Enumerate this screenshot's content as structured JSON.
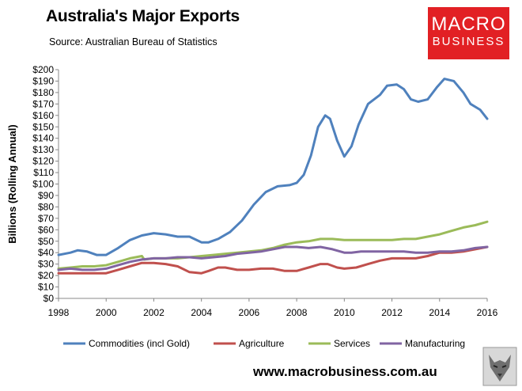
{
  "header": {
    "title": "Australia's Major Exports",
    "source": "Source:  Australian Bureau of Statistics"
  },
  "logo": {
    "line1": "MACRO",
    "line2": "BUSINESS"
  },
  "footer": {
    "url": "www.macrobusiness.com.au"
  },
  "chart_data": {
    "type": "line",
    "title": "Australia's Major Exports",
    "xlabel": "",
    "ylabel": "Billions (Rolling Annual)",
    "xlim": [
      1998,
      2016
    ],
    "ylim": [
      0,
      200
    ],
    "x_ticks": [
      1998,
      2000,
      2002,
      2004,
      2006,
      2008,
      2010,
      2012,
      2014,
      2016
    ],
    "y_ticks": [
      0,
      10,
      20,
      30,
      40,
      50,
      60,
      70,
      80,
      90,
      100,
      110,
      120,
      130,
      140,
      150,
      160,
      170,
      180,
      190,
      200
    ],
    "y_tick_labels": [
      "$0",
      "$10",
      "$20",
      "$30",
      "$40",
      "$50",
      "$60",
      "$70",
      "$80",
      "$90",
      "$100",
      "$110",
      "$120",
      "$130",
      "$140",
      "$150",
      "$160",
      "$170",
      "$180",
      "$190",
      "$200"
    ],
    "grid": false,
    "legend_position": "bottom",
    "series": [
      {
        "name": "Commodities (incl Gold)",
        "color": "#4f81bd",
        "points": [
          [
            1998,
            38
          ],
          [
            1998.5,
            40
          ],
          [
            1998.8,
            42
          ],
          [
            1999.2,
            41
          ],
          [
            1999.6,
            38
          ],
          [
            2000,
            38
          ],
          [
            2000.5,
            44
          ],
          [
            2001,
            51
          ],
          [
            2001.5,
            55
          ],
          [
            2002,
            57
          ],
          [
            2002.5,
            56
          ],
          [
            2003,
            54
          ],
          [
            2003.5,
            54
          ],
          [
            2004,
            49
          ],
          [
            2004.3,
            49
          ],
          [
            2004.7,
            52
          ],
          [
            2005.2,
            58
          ],
          [
            2005.7,
            68
          ],
          [
            2006.2,
            82
          ],
          [
            2006.7,
            93
          ],
          [
            2007.2,
            98
          ],
          [
            2007.7,
            99
          ],
          [
            2008,
            101
          ],
          [
            2008.3,
            108
          ],
          [
            2008.6,
            125
          ],
          [
            2008.9,
            150
          ],
          [
            2009.2,
            160
          ],
          [
            2009.4,
            157
          ],
          [
            2009.7,
            138
          ],
          [
            2010,
            124
          ],
          [
            2010.3,
            133
          ],
          [
            2010.6,
            152
          ],
          [
            2011,
            170
          ],
          [
            2011.5,
            178
          ],
          [
            2011.8,
            186
          ],
          [
            2012.2,
            187
          ],
          [
            2012.5,
            183
          ],
          [
            2012.8,
            174
          ],
          [
            2013.1,
            172
          ],
          [
            2013.5,
            174
          ],
          [
            2013.9,
            185
          ],
          [
            2014.2,
            192
          ],
          [
            2014.6,
            190
          ],
          [
            2015,
            180
          ],
          [
            2015.3,
            170
          ],
          [
            2015.7,
            165
          ],
          [
            2016,
            157
          ]
        ]
      },
      {
        "name": "Agriculture",
        "color": "#c0504d",
        "points": [
          [
            1998,
            22
          ],
          [
            1999,
            22
          ],
          [
            2000,
            22
          ],
          [
            2000.5,
            25
          ],
          [
            2001,
            28
          ],
          [
            2001.5,
            31
          ],
          [
            2002,
            31
          ],
          [
            2002.5,
            30
          ],
          [
            2003,
            28
          ],
          [
            2003.5,
            23
          ],
          [
            2004,
            22
          ],
          [
            2004.3,
            24
          ],
          [
            2004.7,
            27
          ],
          [
            2005,
            27
          ],
          [
            2005.5,
            25
          ],
          [
            2006,
            25
          ],
          [
            2006.5,
            26
          ],
          [
            2007,
            26
          ],
          [
            2007.5,
            24
          ],
          [
            2008,
            24
          ],
          [
            2008.5,
            27
          ],
          [
            2009,
            30
          ],
          [
            2009.3,
            30
          ],
          [
            2009.7,
            27
          ],
          [
            2010,
            26
          ],
          [
            2010.5,
            27
          ],
          [
            2011,
            30
          ],
          [
            2011.5,
            33
          ],
          [
            2012,
            35
          ],
          [
            2012.5,
            35
          ],
          [
            2013,
            35
          ],
          [
            2013.5,
            37
          ],
          [
            2014,
            40
          ],
          [
            2014.5,
            40
          ],
          [
            2015,
            41
          ],
          [
            2015.5,
            43
          ],
          [
            2016,
            45
          ]
        ]
      },
      {
        "name": "Services",
        "color": "#9bbb59",
        "points": [
          [
            1998,
            26
          ],
          [
            1998.5,
            27
          ],
          [
            1999,
            28
          ],
          [
            1999.5,
            28
          ],
          [
            2000,
            29
          ],
          [
            2000.5,
            32
          ],
          [
            2001,
            35
          ],
          [
            2001.5,
            37
          ],
          [
            2001.6,
            34
          ],
          [
            2002,
            35
          ],
          [
            2002.5,
            35
          ],
          [
            2003,
            35
          ],
          [
            2003.5,
            36
          ],
          [
            2004,
            37
          ],
          [
            2004.5,
            38
          ],
          [
            2005,
            39
          ],
          [
            2005.5,
            40
          ],
          [
            2006,
            41
          ],
          [
            2006.5,
            42
          ],
          [
            2007,
            44
          ],
          [
            2007.5,
            47
          ],
          [
            2008,
            49
          ],
          [
            2008.5,
            50
          ],
          [
            2009,
            52
          ],
          [
            2009.5,
            52
          ],
          [
            2010,
            51
          ],
          [
            2010.5,
            51
          ],
          [
            2011,
            51
          ],
          [
            2011.5,
            51
          ],
          [
            2012,
            51
          ],
          [
            2012.5,
            52
          ],
          [
            2013,
            52
          ],
          [
            2013.5,
            54
          ],
          [
            2014,
            56
          ],
          [
            2014.5,
            59
          ],
          [
            2015,
            62
          ],
          [
            2015.5,
            64
          ],
          [
            2016,
            67
          ]
        ]
      },
      {
        "name": "Manufacturing",
        "color": "#8064a2",
        "points": [
          [
            1998,
            25
          ],
          [
            1998.5,
            26
          ],
          [
            1999,
            25
          ],
          [
            1999.5,
            25
          ],
          [
            2000,
            26
          ],
          [
            2000.5,
            29
          ],
          [
            2001,
            32
          ],
          [
            2001.5,
            34
          ],
          [
            2002,
            35
          ],
          [
            2002.5,
            35
          ],
          [
            2003,
            36
          ],
          [
            2003.5,
            36
          ],
          [
            2004,
            35
          ],
          [
            2004.5,
            36
          ],
          [
            2005,
            37
          ],
          [
            2005.5,
            39
          ],
          [
            2006,
            40
          ],
          [
            2006.5,
            41
          ],
          [
            2007,
            43
          ],
          [
            2007.5,
            45
          ],
          [
            2008,
            45
          ],
          [
            2008.5,
            44
          ],
          [
            2009,
            45
          ],
          [
            2009.5,
            43
          ],
          [
            2010,
            40
          ],
          [
            2010.3,
            40
          ],
          [
            2010.7,
            41
          ],
          [
            2011,
            41
          ],
          [
            2011.5,
            41
          ],
          [
            2012,
            41
          ],
          [
            2012.5,
            41
          ],
          [
            2013,
            40
          ],
          [
            2013.5,
            40
          ],
          [
            2014,
            41
          ],
          [
            2014.5,
            41
          ],
          [
            2015,
            42
          ],
          [
            2015.5,
            44
          ],
          [
            2016,
            45
          ]
        ]
      }
    ]
  }
}
